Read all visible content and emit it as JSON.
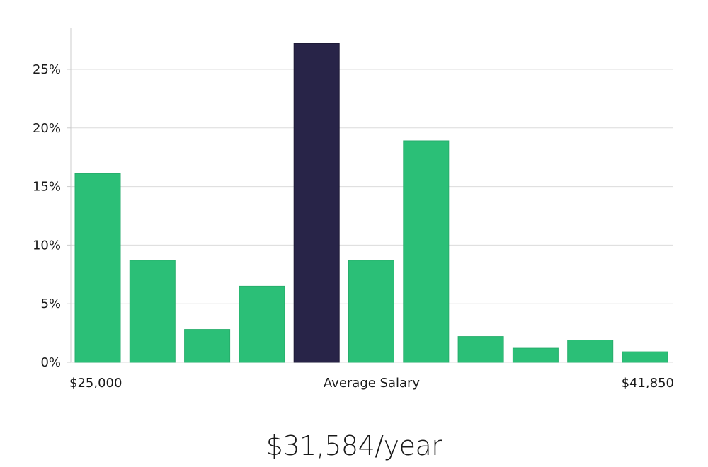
{
  "chart_data": {
    "type": "bar",
    "title": "",
    "xlabel": "Average Salary",
    "ylabel": "",
    "ylim": [
      0,
      0.285
    ],
    "yticks": [
      0,
      0.05,
      0.1,
      0.15,
      0.2,
      0.25
    ],
    "ytick_labels": [
      "0%",
      "5%",
      "10%",
      "15%",
      "20%",
      "25%"
    ],
    "range_min_label": "$25,000",
    "range_max_label": "$41,850",
    "values": [
      0.161,
      0.087,
      0.028,
      0.065,
      0.272,
      0.087,
      0.189,
      0.022,
      0.012,
      0.019,
      0.009
    ],
    "highlight_index": 4,
    "grid": true
  },
  "summary": {
    "salary": "$31,584/year"
  },
  "colors": {
    "bar": "#2bbf77",
    "bar_edge": "#27ae6c",
    "highlight": "#282448",
    "grid": "#dcdcdc",
    "axis": "#cccccc"
  }
}
